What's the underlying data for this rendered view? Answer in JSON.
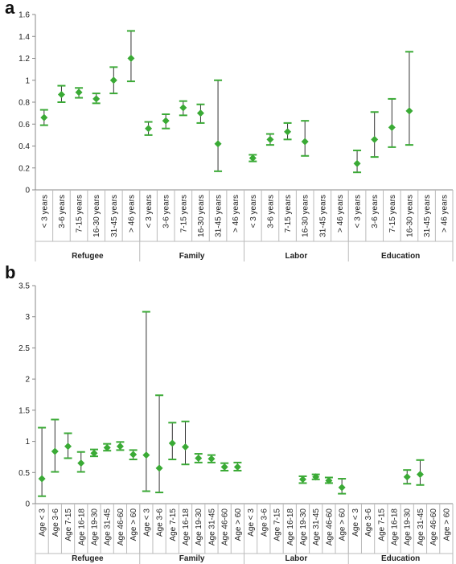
{
  "colors": {
    "marker": "#3aaa35",
    "errbar": "#333333",
    "axis": "#888888"
  },
  "chart_data": [
    {
      "type": "scatter",
      "panel_label": "a",
      "ylim": [
        0,
        1.6
      ],
      "yticks": [
        "0",
        "0.2",
        "0.4",
        "0.6",
        "0.8",
        "1",
        "1.2",
        "1.4",
        "1.6"
      ],
      "groups": [
        {
          "name": "Refugee",
          "categories": [
            "< 3 years",
            "3-6 years",
            "7-15 years",
            "16-30 years",
            "31-45 years",
            "> 46 years"
          ],
          "values": [
            0.66,
            0.87,
            0.89,
            0.83,
            1.0,
            1.2
          ],
          "lower": [
            0.59,
            0.8,
            0.84,
            0.79,
            0.88,
            0.99
          ],
          "upper": [
            0.73,
            0.95,
            0.93,
            0.88,
            1.12,
            1.45
          ]
        },
        {
          "name": "Family",
          "categories": [
            "< 3 years",
            "3-6 years",
            "7-15 years",
            "16-30 years",
            "31-45 years",
            "> 46 years"
          ],
          "values": [
            0.56,
            0.63,
            0.75,
            0.7,
            0.42,
            null
          ],
          "lower": [
            0.5,
            0.56,
            0.68,
            0.61,
            0.17,
            null
          ],
          "upper": [
            0.62,
            0.69,
            0.81,
            0.78,
            1.0,
            null
          ]
        },
        {
          "name": "Labor",
          "categories": [
            "< 3 years",
            "3-6 years",
            "7-15 years",
            "16-30 years",
            "31-45 years",
            "> 46 years"
          ],
          "values": [
            0.29,
            0.46,
            0.53,
            0.44,
            null,
            null
          ],
          "lower": [
            0.26,
            0.41,
            0.46,
            0.31,
            null,
            null
          ],
          "upper": [
            0.32,
            0.51,
            0.61,
            0.63,
            null,
            null
          ]
        },
        {
          "name": "Education",
          "categories": [
            "< 3 years",
            "3-6 years",
            "7-15 years",
            "16-30 years",
            "31-45 years",
            "> 46 years"
          ],
          "values": [
            0.24,
            0.46,
            0.57,
            0.72,
            null,
            null
          ],
          "lower": [
            0.16,
            0.3,
            0.39,
            0.41,
            null,
            null
          ],
          "upper": [
            0.36,
            0.71,
            0.83,
            1.26,
            null,
            null
          ]
        }
      ]
    },
    {
      "type": "scatter",
      "panel_label": "b",
      "ylim": [
        0,
        3.5
      ],
      "yticks": [
        "0",
        "0.5",
        "1",
        "1.5",
        "2",
        "2.5",
        "3",
        "3.5"
      ],
      "groups": [
        {
          "name": "Refugee",
          "categories": [
            "Age < 3",
            "Age 3-6",
            "Age 7-15",
            "Age 16-18",
            "Age 19-30",
            "Age 31-45",
            "Age 46-60",
            "Age > 60"
          ],
          "values": [
            0.4,
            0.84,
            0.92,
            0.65,
            0.81,
            0.9,
            0.92,
            0.79
          ],
          "lower": [
            0.12,
            0.51,
            0.73,
            0.51,
            0.76,
            0.85,
            0.86,
            0.71
          ],
          "upper": [
            1.22,
            1.35,
            1.13,
            0.83,
            0.87,
            0.96,
            0.99,
            0.86
          ]
        },
        {
          "name": "Family",
          "categories": [
            "Age < 3",
            "Age 3-6",
            "Age 7-15",
            "Age 16-18",
            "Age 19-30",
            "Age 31-45",
            "Age 46-60",
            "Age > 60"
          ],
          "values": [
            0.78,
            0.57,
            0.97,
            0.91,
            0.73,
            0.72,
            0.59,
            0.59
          ],
          "lower": [
            0.2,
            0.18,
            0.71,
            0.63,
            0.66,
            0.66,
            0.53,
            0.53
          ],
          "upper": [
            3.08,
            1.74,
            1.3,
            1.32,
            0.8,
            0.78,
            0.65,
            0.66
          ]
        },
        {
          "name": "Labor",
          "categories": [
            "Age < 3",
            "Age 3-6",
            "Age 7-15",
            "Age 16-18",
            "Age 19-30",
            "Age 31-45",
            "Age 46-60",
            "Age > 60"
          ],
          "values": [
            null,
            null,
            null,
            null,
            0.39,
            0.43,
            0.37,
            0.26
          ],
          "lower": [
            null,
            null,
            null,
            null,
            0.33,
            0.39,
            0.33,
            0.16
          ],
          "upper": [
            null,
            null,
            null,
            null,
            0.44,
            0.47,
            0.42,
            0.4
          ]
        },
        {
          "name": "Education",
          "categories": [
            "Age < 3",
            "Age 3-6",
            "Age 7-15",
            "Age 16-18",
            "Age 19-30",
            "Age 31-45",
            "Age 46-60",
            "Age > 60"
          ],
          "values": [
            null,
            null,
            null,
            null,
            0.43,
            0.47,
            null,
            null
          ],
          "lower": [
            null,
            null,
            null,
            null,
            0.32,
            0.3,
            null,
            null
          ],
          "upper": [
            null,
            null,
            null,
            null,
            0.54,
            0.7,
            null,
            null
          ]
        }
      ]
    }
  ]
}
